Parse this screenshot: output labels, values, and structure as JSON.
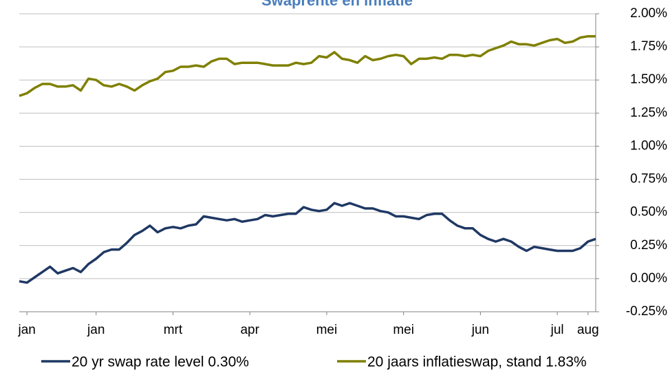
{
  "chart_data": {
    "type": "line",
    "title": "Swaprente en inflatie",
    "categories": [
      null,
      "jan",
      null,
      null,
      null,
      null,
      null,
      null,
      null,
      null,
      "jan",
      null,
      null,
      null,
      null,
      null,
      null,
      null,
      null,
      null,
      "mrt",
      null,
      null,
      null,
      null,
      null,
      null,
      null,
      null,
      null,
      "apr",
      null,
      null,
      null,
      null,
      null,
      null,
      null,
      null,
      null,
      "mei",
      null,
      null,
      null,
      null,
      null,
      null,
      null,
      null,
      null,
      "mei",
      null,
      null,
      null,
      null,
      null,
      null,
      null,
      null,
      null,
      "jun",
      null,
      null,
      null,
      null,
      null,
      null,
      null,
      null,
      null,
      "jul",
      null,
      null,
      null,
      "aug",
      null
    ],
    "series": [
      {
        "name": "20 yr swap rate level 0.30%",
        "color": "#1f3864",
        "values": [
          -0.02,
          -0.03,
          0.01,
          0.05,
          0.09,
          0.04,
          0.06,
          0.08,
          0.05,
          0.11,
          0.15,
          0.2,
          0.22,
          0.22,
          0.27,
          0.33,
          0.36,
          0.4,
          0.35,
          0.38,
          0.39,
          0.38,
          0.4,
          0.41,
          0.47,
          0.46,
          0.45,
          0.44,
          0.45,
          0.43,
          0.44,
          0.45,
          0.48,
          0.47,
          0.48,
          0.49,
          0.49,
          0.54,
          0.52,
          0.51,
          0.52,
          0.57,
          0.55,
          0.57,
          0.55,
          0.53,
          0.53,
          0.51,
          0.5,
          0.47,
          0.47,
          0.46,
          0.45,
          0.48,
          0.49,
          0.49,
          0.44,
          0.4,
          0.38,
          0.38,
          0.33,
          0.3,
          0.28,
          0.3,
          0.28,
          0.24,
          0.21,
          0.24,
          0.23,
          0.22,
          0.21,
          0.21,
          0.21,
          0.23,
          0.28,
          0.3
        ]
      },
      {
        "name": "20 jaars inflatieswap, stand 1.83%",
        "color": "#7f8000",
        "values": [
          1.38,
          1.4,
          1.44,
          1.47,
          1.47,
          1.45,
          1.45,
          1.46,
          1.42,
          1.51,
          1.5,
          1.46,
          1.45,
          1.47,
          1.45,
          1.42,
          1.46,
          1.49,
          1.51,
          1.56,
          1.57,
          1.6,
          1.6,
          1.61,
          1.6,
          1.64,
          1.66,
          1.66,
          1.62,
          1.63,
          1.63,
          1.63,
          1.62,
          1.61,
          1.61,
          1.61,
          1.63,
          1.62,
          1.63,
          1.68,
          1.67,
          1.71,
          1.66,
          1.65,
          1.63,
          1.68,
          1.65,
          1.66,
          1.68,
          1.69,
          1.68,
          1.62,
          1.66,
          1.66,
          1.67,
          1.66,
          1.69,
          1.69,
          1.68,
          1.69,
          1.68,
          1.72,
          1.74,
          1.76,
          1.79,
          1.77,
          1.77,
          1.76,
          1.78,
          1.8,
          1.81,
          1.78,
          1.79,
          1.82,
          1.83,
          1.83
        ]
      }
    ],
    "ylim": [
      -0.25,
      2.0
    ],
    "yticks": [
      {
        "value": -0.25,
        "label": "-0.25%"
      },
      {
        "value": 0,
        "label": "0.00%"
      },
      {
        "value": 0.25,
        "label": "0.25%"
      },
      {
        "value": 0.5,
        "label": "0.50%"
      },
      {
        "value": 0.75,
        "label": "0.75%"
      },
      {
        "value": 1.0,
        "label": "1.00%"
      },
      {
        "value": 1.25,
        "label": "1.25%"
      },
      {
        "value": 1.5,
        "label": "1.50%"
      },
      {
        "value": 1.75,
        "label": "1.75%"
      },
      {
        "value": 2.0,
        "label": "2.00%"
      }
    ],
    "grid": true,
    "legend": "bottom"
  }
}
